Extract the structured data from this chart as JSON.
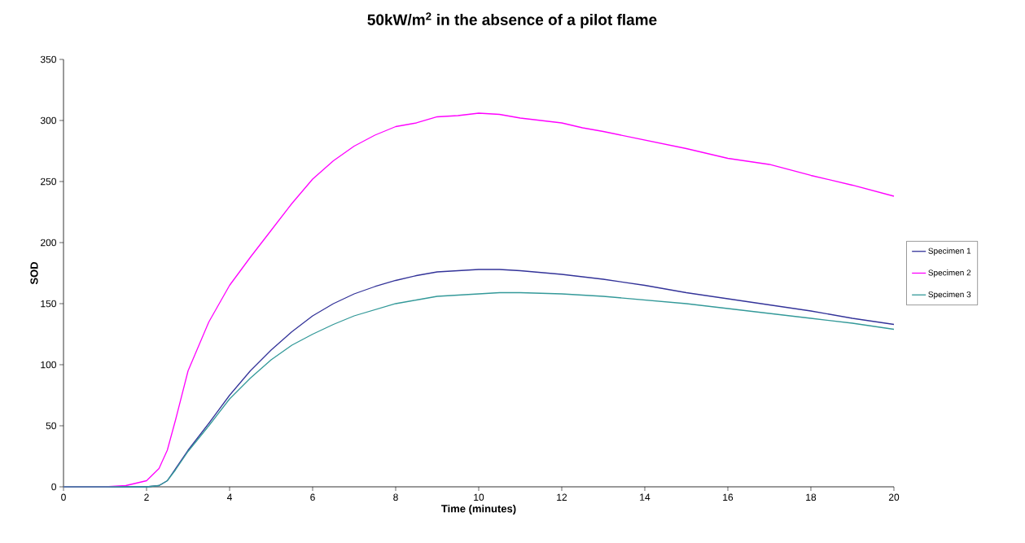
{
  "chart_data": {
    "type": "line",
    "title": "50kW/m$^{2}$ in the absence of a pilot flame",
    "xlabel": "Time (minutes)",
    "ylabel": "SOD",
    "x": [
      0,
      1,
      1.5,
      2,
      2.3,
      2.5,
      2.7,
      3,
      3.5,
      4,
      4.5,
      5,
      5.5,
      6,
      6.5,
      7,
      7.5,
      8,
      8.5,
      9,
      9.5,
      10,
      10.5,
      11,
      12,
      12.5,
      13,
      14,
      15,
      16,
      17,
      18,
      19,
      20
    ],
    "series": [
      {
        "name": "Specimen 1",
        "color": "#333399",
        "values": [
          0,
          0,
          0,
          0,
          1,
          5,
          15,
          30,
          52,
          75,
          95,
          112,
          127,
          140,
          150,
          158,
          164,
          169,
          173,
          176,
          177,
          178,
          178,
          177,
          174,
          172,
          170,
          165,
          159,
          154,
          149,
          144,
          138,
          133
        ]
      },
      {
        "name": "Specimen 2",
        "color": "#ff00ff",
        "values": [
          0,
          0,
          1,
          5,
          15,
          30,
          55,
          95,
          135,
          165,
          188,
          210,
          232,
          252,
          267,
          279,
          288,
          295,
          298,
          303,
          304,
          306,
          305,
          302,
          298,
          294,
          291,
          284,
          277,
          269,
          264,
          255,
          247,
          238
        ]
      },
      {
        "name": "Specimen 3",
        "color": "#339999",
        "values": [
          0,
          0,
          0,
          0,
          1,
          5,
          14,
          29,
          50,
          72,
          89,
          104,
          116,
          125,
          133,
          140,
          145,
          150,
          153,
          156,
          157,
          158,
          159,
          159,
          158,
          157,
          156,
          153,
          150,
          146,
          142,
          138,
          134,
          129
        ]
      }
    ],
    "xlim": [
      0,
      20
    ],
    "ylim": [
      0,
      350
    ],
    "xticks": [
      0,
      2,
      4,
      6,
      8,
      10,
      12,
      14,
      16,
      18,
      20
    ],
    "yticks": [
      0,
      50,
      100,
      150,
      200,
      250,
      300,
      350
    ],
    "grid": false,
    "legend": "right",
    "marker": "none",
    "line_style": "solid"
  }
}
